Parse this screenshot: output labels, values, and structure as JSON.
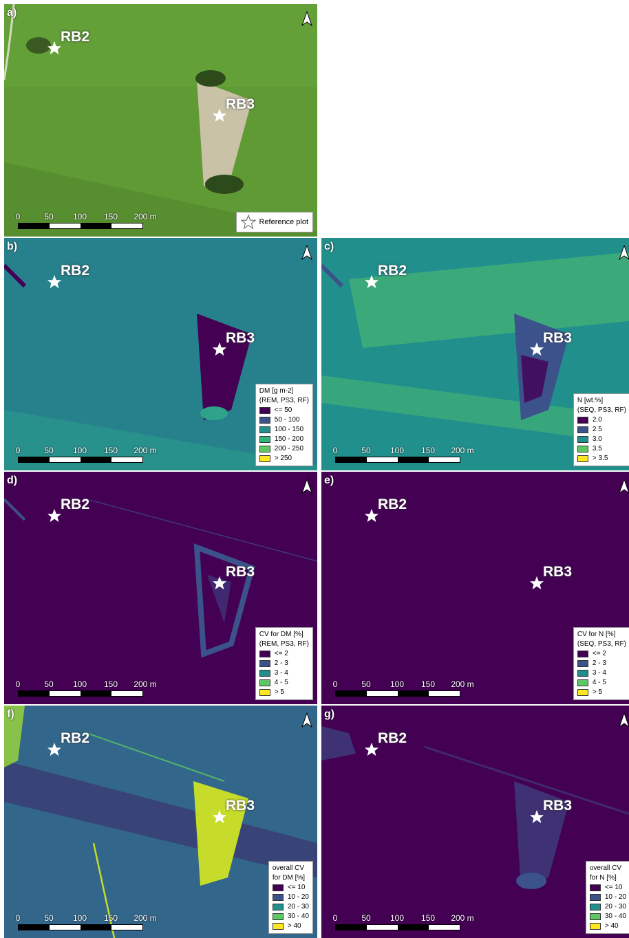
{
  "colors": {
    "c1": "#440154",
    "c2": "#3b528b",
    "c3": "#21908d",
    "c4": "#5dc863",
    "c5": "#fde725",
    "grass": "#5f9a35",
    "bare": "#c9c2a7"
  },
  "scale_labels": [
    "0",
    "50",
    "100",
    "150",
    "200 m"
  ],
  "sites": {
    "rb2": "RB2",
    "rb3": "RB3"
  },
  "panels": {
    "a": {
      "label": "a)",
      "reference_label": "Reference plot"
    },
    "b": {
      "label": "b)",
      "legend_title": [
        "DM [g m-2]",
        "(REM, PS3, RF)"
      ],
      "classes": [
        "<= 50",
        "50 - 100",
        "100 - 150",
        "150 - 200",
        "200 - 250",
        "> 250"
      ]
    },
    "c": {
      "label": "c)",
      "legend_title": [
        "N [wt.%]",
        "(SEQ, PS3, RF)"
      ],
      "classes": [
        "2.0",
        "2.5",
        "3.0",
        "3.5",
        "> 3.5"
      ]
    },
    "d": {
      "label": "d)",
      "legend_title": [
        "CV for DM [%]",
        "(REM, PS3, RF)"
      ],
      "classes": [
        "<= 2",
        "2 - 3",
        "3 - 4",
        "4 - 5",
        "> 5"
      ]
    },
    "e": {
      "label": "e)",
      "legend_title": [
        "CV for N [%]",
        "(SEQ, PS3, RF)"
      ],
      "classes": [
        "<= 2",
        "2 - 3",
        "3 - 4",
        "4 - 5",
        "> 5"
      ]
    },
    "f": {
      "label": "f)",
      "legend_title": [
        "overall CV",
        "for DM [%]"
      ],
      "classes": [
        "<= 10",
        "10 - 20",
        "20 - 30",
        "30 - 40",
        "> 40"
      ]
    },
    "g": {
      "label": "g)",
      "legend_title": [
        "overall CV",
        "for N [%]"
      ],
      "classes": [
        "<= 10",
        "10 - 20",
        "20 - 30",
        "30 - 40",
        "> 40"
      ]
    }
  }
}
